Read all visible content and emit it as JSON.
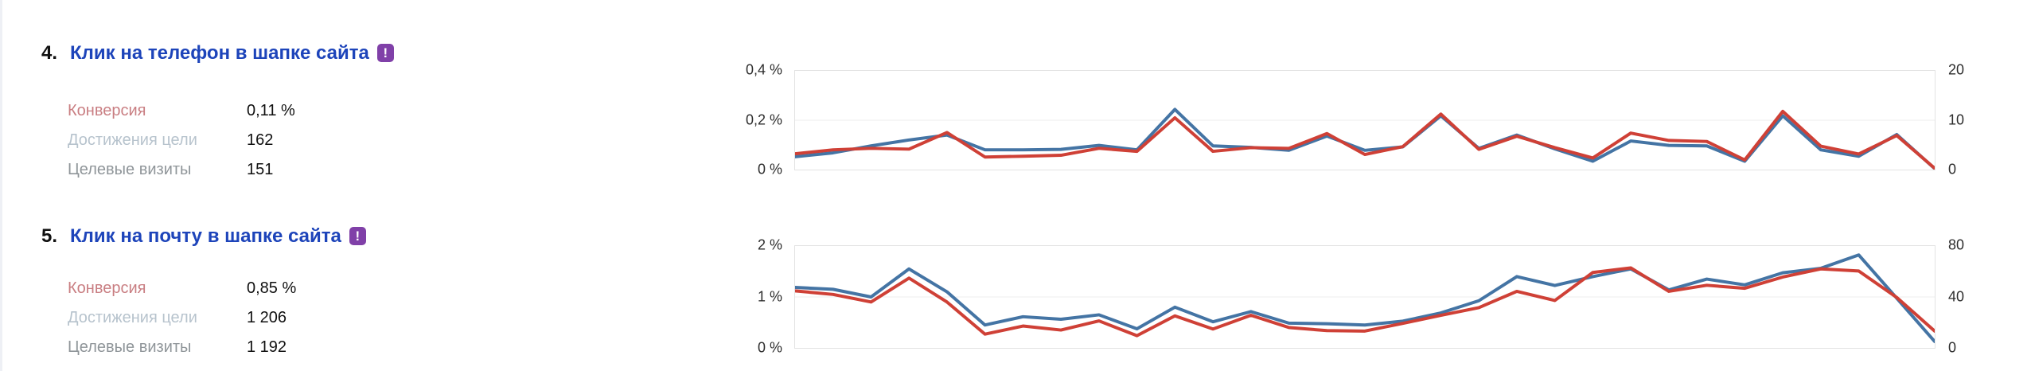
{
  "goals": [
    {
      "index": "4.",
      "title": "Клик на телефон в шапке сайта",
      "badge_glyph": "!",
      "metrics": [
        {
          "label": "Конверсия",
          "value": "0,11 %"
        },
        {
          "label": "Достижения цели",
          "value": "162"
        },
        {
          "label": "Целевые визиты",
          "value": "151"
        }
      ]
    },
    {
      "index": "5.",
      "title": "Клик на почту в шапке сайта",
      "badge_glyph": "!",
      "metrics": [
        {
          "label": "Конверсия",
          "value": "0,85 %"
        },
        {
          "label": "Достижения цели",
          "value": "1 206"
        },
        {
          "label": "Целевые визиты",
          "value": "1 192"
        }
      ]
    }
  ],
  "colors": {
    "title_link": "#1d44ba",
    "badge": "#8040a8",
    "conversion_line": "#cf4036",
    "reaches_line": "#4474a4",
    "conversion_label": "#c97e82",
    "reaches_label": "#b7c3cd",
    "visits_label": "#8f9599",
    "gridline": "#ececec"
  },
  "chart_data": [
    {
      "type": "line",
      "title": "Goal 4: Клик на телефон в шапке сайта",
      "x": [
        1,
        2,
        3,
        4,
        5,
        6,
        7,
        8,
        9,
        10,
        11,
        12,
        13,
        14,
        15,
        16,
        17,
        18,
        19,
        20,
        21,
        22,
        23,
        24,
        25,
        26,
        27,
        28,
        29,
        30,
        31
      ],
      "left_axis": {
        "ticks": [
          "0,4 %",
          "0,2 %",
          "0 %"
        ],
        "min": 0,
        "max": 0.4
      },
      "right_axis": {
        "ticks": [
          "20",
          "10",
          "0"
        ],
        "min": 0,
        "max": 20
      },
      "grid": "horizontal-only",
      "legend": "none",
      "series": [
        {
          "name": "Достижения цели",
          "axis": "right",
          "color": "#4474a4",
          "values": [
            2.6,
            3.4,
            4.8,
            6.0,
            7.0,
            4.0,
            4.0,
            4.1,
            4.9,
            4.0,
            12.2,
            4.8,
            4.5,
            3.9,
            6.8,
            3.9,
            4.6,
            10.9,
            4.3,
            7.0,
            4.2,
            1.7,
            5.8,
            4.9,
            4.8,
            1.7,
            10.9,
            4.0,
            2.7,
            7.1,
            0.2
          ]
        },
        {
          "name": "Конверсия",
          "axis": "left",
          "color": "#cf4036",
          "values": [
            0.064,
            0.08,
            0.086,
            0.083,
            0.15,
            0.051,
            0.054,
            0.058,
            0.086,
            0.074,
            0.21,
            0.074,
            0.089,
            0.086,
            0.146,
            0.061,
            0.093,
            0.225,
            0.082,
            0.135,
            0.089,
            0.047,
            0.148,
            0.118,
            0.114,
            0.039,
            0.236,
            0.095,
            0.063,
            0.138,
            0.005
          ]
        }
      ]
    },
    {
      "type": "line",
      "title": "Goal 5: Клик на почту в шапке сайта",
      "x": [
        1,
        2,
        3,
        4,
        5,
        6,
        7,
        8,
        9,
        10,
        11,
        12,
        13,
        14,
        15,
        16,
        17,
        18,
        19,
        20,
        21,
        22,
        23,
        24,
        25,
        26,
        27,
        28,
        29,
        30,
        31
      ],
      "left_axis": {
        "ticks": [
          "2 %",
          "1 %",
          "0 %"
        ],
        "min": 0,
        "max": 2
      },
      "right_axis": {
        "ticks": [
          "80",
          "40",
          "0"
        ],
        "min": 0,
        "max": 80
      },
      "grid": "horizontal-only",
      "legend": "none",
      "series": [
        {
          "name": "Достижения цели",
          "axis": "right",
          "color": "#4474a4",
          "values": [
            47.5,
            46,
            40,
            62,
            44,
            18,
            24.5,
            22.5,
            26,
            15,
            32,
            20.5,
            28.5,
            19.5,
            19,
            18,
            21,
            27.5,
            37,
            56,
            49,
            56,
            62,
            45.5,
            54,
            49.5,
            59,
            62.5,
            73,
            39,
            5
          ]
        },
        {
          "name": "Конверсия",
          "axis": "left",
          "color": "#cf4036",
          "values": [
            1.12,
            1.05,
            0.9,
            1.37,
            0.9,
            0.27,
            0.43,
            0.35,
            0.53,
            0.24,
            0.63,
            0.37,
            0.64,
            0.4,
            0.34,
            0.33,
            0.48,
            0.64,
            0.79,
            1.11,
            0.93,
            1.48,
            1.57,
            1.11,
            1.23,
            1.17,
            1.39,
            1.55,
            1.51,
            0.99,
            0.33
          ]
        }
      ]
    }
  ]
}
